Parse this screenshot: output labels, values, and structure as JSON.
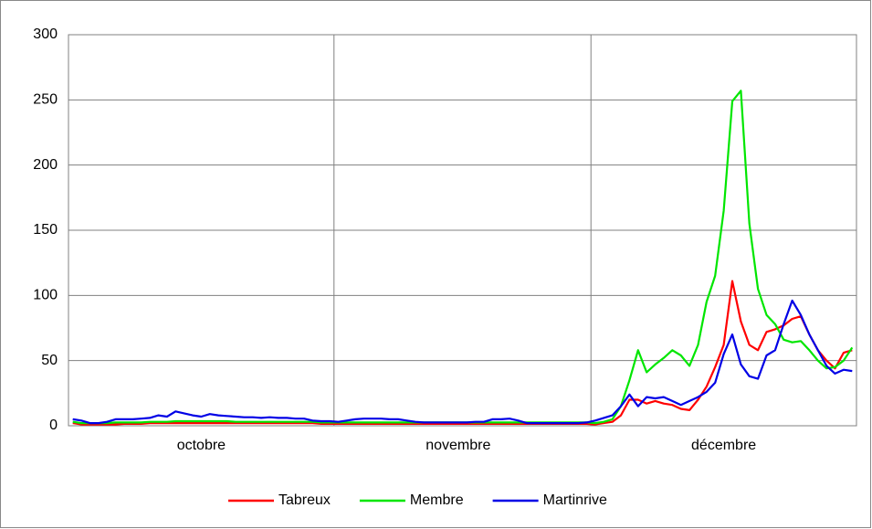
{
  "chart_data": {
    "type": "line",
    "categories": [
      null,
      null,
      null,
      null,
      null,
      null,
      null,
      null,
      null,
      null,
      null,
      null,
      null,
      null,
      null,
      "octobre",
      null,
      null,
      null,
      null,
      null,
      null,
      null,
      null,
      null,
      null,
      null,
      null,
      null,
      null,
      null,
      null,
      null,
      null,
      null,
      null,
      null,
      null,
      null,
      null,
      null,
      null,
      null,
      null,
      null,
      "novembre",
      null,
      null,
      null,
      null,
      null,
      null,
      null,
      null,
      null,
      null,
      null,
      null,
      null,
      null,
      null,
      null,
      null,
      null,
      null,
      null,
      null,
      null,
      null,
      null,
      null,
      null,
      null,
      null,
      null,
      null,
      "décembre",
      null,
      null,
      null,
      null,
      null,
      null,
      null,
      null,
      null,
      null,
      null,
      null,
      null,
      null,
      null
    ],
    "series": [
      {
        "name": "Tabreux",
        "color": "#ff0000",
        "values": [
          2,
          1,
          1,
          1,
          1,
          1,
          1.5,
          1.5,
          1.5,
          2,
          2,
          2,
          2,
          2,
          2,
          2,
          2,
          2,
          2,
          2,
          2,
          2,
          2,
          2,
          2,
          2,
          2,
          2,
          2,
          1.5,
          1.5,
          1.5,
          1.5,
          1.5,
          1.5,
          1.5,
          1.5,
          1.5,
          1.5,
          1.5,
          1.5,
          1.5,
          1.5,
          1.5,
          1.5,
          1.5,
          1.5,
          1.5,
          1.5,
          1.5,
          1.5,
          1.5,
          1.5,
          1.5,
          1.5,
          1.5,
          1.5,
          1.5,
          1.5,
          1.5,
          1.5,
          1,
          2,
          3,
          8,
          20,
          20,
          17,
          19,
          17,
          16,
          13,
          12,
          20,
          30,
          45,
          62,
          111,
          80,
          62,
          58,
          72,
          74,
          77,
          82,
          84,
          70,
          58,
          50,
          44,
          56,
          58
        ]
      },
      {
        "name": "Membre",
        "color": "#00e600",
        "values": [
          3,
          2,
          2,
          2,
          2,
          2.5,
          2.5,
          2.5,
          2.5,
          3,
          3,
          3,
          3.5,
          3.5,
          3.5,
          3.5,
          3.5,
          3.5,
          3.5,
          3,
          3,
          3,
          3,
          3,
          3,
          3,
          3,
          3,
          3,
          2.5,
          2.5,
          2.5,
          2.5,
          2.5,
          2.5,
          2.5,
          2.5,
          2.5,
          2.5,
          2.5,
          2.5,
          2.5,
          2.5,
          2.5,
          2.5,
          2.5,
          2.5,
          2.5,
          2.5,
          2.5,
          2.5,
          2.5,
          2.5,
          2.5,
          2.5,
          2.5,
          2.5,
          2.5,
          2.5,
          2.5,
          2.5,
          2,
          3,
          5,
          15,
          35,
          58,
          41,
          47,
          52,
          58,
          54,
          46,
          62,
          95,
          115,
          165,
          249,
          257,
          155,
          105,
          85,
          78,
          66,
          64,
          65,
          58,
          50,
          44,
          45,
          50,
          60
        ]
      },
      {
        "name": "Martinrive",
        "color": "#0000e6",
        "values": [
          5,
          4,
          2,
          2,
          3,
          5,
          5,
          5,
          5.5,
          6,
          8,
          7,
          11,
          9.5,
          8,
          7,
          9,
          8,
          7.5,
          7,
          6.5,
          6.5,
          6,
          6.5,
          6,
          6,
          5.5,
          5.5,
          4,
          3.5,
          3.5,
          3,
          4,
          5,
          5.5,
          5.5,
          5.5,
          5,
          5,
          4,
          3,
          2.5,
          2.5,
          2.5,
          2.5,
          2.5,
          2.5,
          3,
          3,
          5,
          5,
          5.5,
          4,
          2,
          2,
          2,
          2,
          2,
          2,
          2,
          2.5,
          4,
          6,
          8,
          15,
          24,
          15,
          22,
          21,
          22,
          19,
          16,
          19,
          22,
          26,
          33,
          55,
          70,
          47,
          38,
          36,
          54,
          58,
          78,
          96,
          85,
          70,
          58,
          46,
          40,
          43,
          42
        ]
      }
    ],
    "ylim": [
      0,
      300
    ],
    "yticks": [
      0,
      50,
      100,
      150,
      200,
      250,
      300
    ],
    "grid": true,
    "legend": "bottom"
  }
}
